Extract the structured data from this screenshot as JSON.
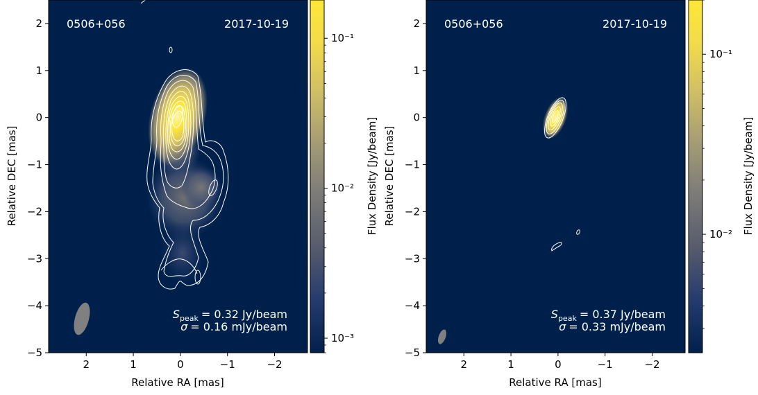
{
  "chart_data": [
    {
      "type": "heatmap",
      "source": "0506+056",
      "date": "2017-10-19",
      "xlabel": "Relative RA [mas]",
      "ylabel": "Relative DEC [mas]",
      "xlim": [
        2.8,
        -2.7
      ],
      "ylim": [
        -5,
        2.5
      ],
      "xticks": [
        2,
        1,
        0,
        -1,
        -2
      ],
      "xtick_labels": [
        "2",
        "1",
        "0",
        "−1",
        "−2"
      ],
      "yticks": [
        2,
        1,
        0,
        -1,
        -2,
        -3,
        -4,
        -5
      ],
      "ytick_labels": [
        "2",
        "1",
        "0",
        "−1",
        "−2",
        "−3",
        "−4",
        "−5"
      ],
      "colorbar": {
        "label": "Flux Density [Jy/beam]",
        "scale": "log",
        "range": [
          0.0008,
          0.18
        ],
        "ticks": [
          0.001,
          0.01,
          0.1
        ],
        "tick_labels": [
          "10⁻³",
          "10⁻²",
          "10⁻¹"
        ]
      },
      "annotation": {
        "peak_text": "= 0.32 Jy/beam",
        "sigma_text": "= 0.16 mJy/beam"
      },
      "beam": {
        "x": 2.0,
        "y": -4.35,
        "major": 0.7,
        "minor": 0.3,
        "pa_deg": 15
      },
      "components": [
        {
          "x": 0.0,
          "y": 0.0,
          "sx": 0.28,
          "sy": 0.55,
          "peak": 0.32
        },
        {
          "x": -0.15,
          "y": -1.7,
          "sx": 0.55,
          "sy": 0.5,
          "peak": 0.006
        },
        {
          "x": -0.4,
          "y": -2.3,
          "sx": 0.35,
          "sy": 0.4,
          "peak": 0.003
        },
        {
          "x": -0.1,
          "y": -3.2,
          "sx": 0.3,
          "sy": 0.35,
          "peak": 0.002
        }
      ]
    },
    {
      "type": "heatmap",
      "source": "0506+056",
      "date": "2017-10-19",
      "xlabel": "Relative RA [mas]",
      "ylabel": "Relative DEC [mas]",
      "xlim": [
        2.8,
        -2.7
      ],
      "ylim": [
        -5,
        2.5
      ],
      "xticks": [
        2,
        1,
        0,
        -1,
        -2
      ],
      "xtick_labels": [
        "2",
        "1",
        "0",
        "−1",
        "−2"
      ],
      "yticks": [
        2,
        1,
        0,
        -1,
        -2,
        -3,
        -4,
        -5
      ],
      "ytick_labels": [
        "2",
        "1",
        "0",
        "−1",
        "−2",
        "−3",
        "−4",
        "−5"
      ],
      "colorbar": {
        "label": "Flux Density [Jy/beam]",
        "scale": "log",
        "range": [
          0.0022,
          0.2
        ],
        "ticks": [
          0.01,
          0.1
        ],
        "tick_labels": [
          "10⁻²",
          "10⁻¹"
        ]
      },
      "annotation": {
        "peak_text": "= 0.37 Jy/beam",
        "sigma_text": "= 0.33 mJy/beam"
      },
      "beam": {
        "x": 2.45,
        "y": -4.7,
        "major": 0.32,
        "minor": 0.14,
        "pa_deg": 20
      },
      "components": [
        {
          "x": 0.0,
          "y": 0.0,
          "sx": 0.12,
          "sy": 0.28,
          "peak": 0.37
        }
      ]
    }
  ]
}
